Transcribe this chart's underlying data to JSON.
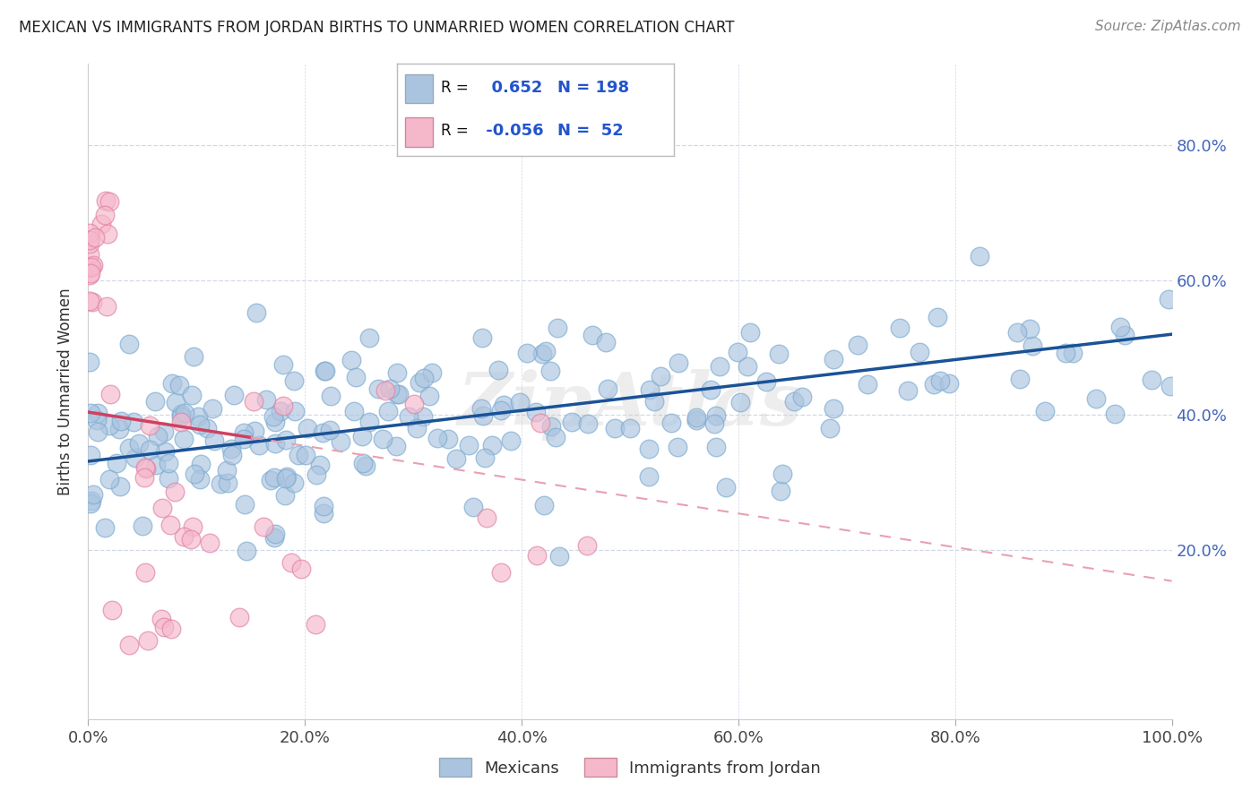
{
  "title": "MEXICAN VS IMMIGRANTS FROM JORDAN BIRTHS TO UNMARRIED WOMEN CORRELATION CHART",
  "source": "Source: ZipAtlas.com",
  "ylabel": "Births to Unmarried Women",
  "xlim": [
    0.0,
    1.0
  ],
  "ylim": [
    -0.05,
    0.92
  ],
  "xtick_vals": [
    0.0,
    0.2,
    0.4,
    0.6,
    0.8,
    1.0
  ],
  "ytick_vals": [
    0.2,
    0.4,
    0.6,
    0.8
  ],
  "blue_R": 0.652,
  "blue_N": 198,
  "pink_R": -0.056,
  "pink_N": 52,
  "blue_color": "#aac4e0",
  "blue_edge_color": "#7aaad0",
  "blue_line_color": "#1a5296",
  "pink_color": "#f5b8cb",
  "pink_edge_color": "#e080a0",
  "pink_line_color": "#d04060",
  "pink_line_dash_color": "#e8a0b0",
  "grid_color": "#d0d8e8",
  "watermark": "ZipAtlas",
  "legend_labels": [
    "Mexicans",
    "Immigrants from Jordan"
  ],
  "blue_seed": 42,
  "pink_seed": 99
}
